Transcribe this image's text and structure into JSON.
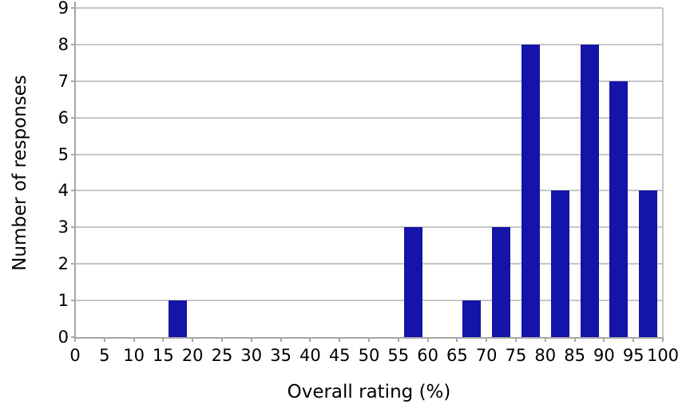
{
  "chart_data": {
    "type": "bar",
    "title": "",
    "xlabel": "Overall rating (%)",
    "ylabel": "Number of responses",
    "xlim": [
      0,
      100
    ],
    "ylim": [
      0,
      9
    ],
    "x_ticks": [
      0,
      5,
      10,
      15,
      20,
      25,
      30,
      35,
      40,
      45,
      50,
      55,
      60,
      65,
      70,
      75,
      80,
      85,
      90,
      95,
      100
    ],
    "y_ticks": [
      0,
      1,
      2,
      3,
      4,
      5,
      6,
      7,
      8,
      9
    ],
    "grid": "horizontal",
    "legend": "none",
    "colors": {
      "bar": "#1414a8",
      "gridline": "#c6c6c6",
      "axis": "#a6a6a6",
      "text": "#000000",
      "background": "#ffffff"
    },
    "bars": [
      {
        "bin": "15-20",
        "x_center": 17.5,
        "value": 1
      },
      {
        "bin": "55-60",
        "x_center": 57.5,
        "value": 3
      },
      {
        "bin": "65-70",
        "x_center": 67.5,
        "value": 1
      },
      {
        "bin": "70-75",
        "x_center": 72.5,
        "value": 3
      },
      {
        "bin": "75-80",
        "x_center": 77.5,
        "value": 8
      },
      {
        "bin": "80-85",
        "x_center": 82.5,
        "value": 4
      },
      {
        "bin": "85-90",
        "x_center": 87.5,
        "value": 8
      },
      {
        "bin": "90-95",
        "x_center": 92.5,
        "value": 7
      },
      {
        "bin": "95-100",
        "x_center": 97.5,
        "value": 4
      }
    ]
  }
}
